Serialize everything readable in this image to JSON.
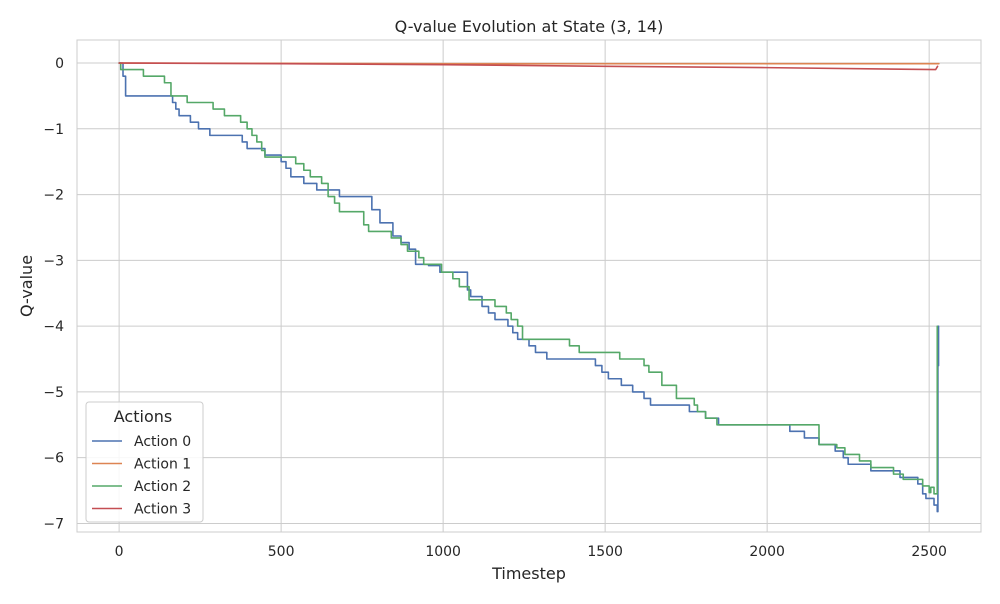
{
  "chart_data": {
    "type": "line",
    "title": "Q-value Evolution at State (3, 14)",
    "xlabel": "Timestep",
    "ylabel": "Q-value",
    "xlim": [
      -130,
      2660
    ],
    "ylim": [
      -7.13,
      0.35
    ],
    "xticks": [
      0,
      500,
      1000,
      1500,
      2000,
      2500
    ],
    "xtick_labels": [
      "0",
      "500",
      "1000",
      "1500",
      "2000",
      "2500"
    ],
    "yticks": [
      0,
      -1,
      -2,
      -3,
      -4,
      -5,
      -6,
      -7
    ],
    "ytick_labels": [
      "0",
      "−1",
      "−2",
      "−3",
      "−4",
      "−5",
      "−6",
      "−7"
    ],
    "grid": true,
    "legend": {
      "title": "Actions",
      "placement": "lower-left"
    },
    "series": [
      {
        "name": "Action 0",
        "color": "#4c72b0",
        "step": true,
        "points": [
          [
            0,
            0
          ],
          [
            12,
            -0.2
          ],
          [
            20,
            -0.5
          ],
          [
            150,
            -0.5
          ],
          [
            165,
            -0.6
          ],
          [
            175,
            -0.7
          ],
          [
            185,
            -0.8
          ],
          [
            220,
            -0.9
          ],
          [
            245,
            -1.0
          ],
          [
            280,
            -1.1
          ],
          [
            380,
            -1.2
          ],
          [
            395,
            -1.3
          ],
          [
            450,
            -1.4
          ],
          [
            500,
            -1.5
          ],
          [
            515,
            -1.6
          ],
          [
            530,
            -1.73
          ],
          [
            570,
            -1.83
          ],
          [
            610,
            -1.93
          ],
          [
            680,
            -2.03
          ],
          [
            780,
            -2.23
          ],
          [
            805,
            -2.43
          ],
          [
            845,
            -2.63
          ],
          [
            870,
            -2.73
          ],
          [
            895,
            -2.83
          ],
          [
            915,
            -3.06
          ],
          [
            955,
            -3.08
          ],
          [
            990,
            -3.18
          ],
          [
            1075,
            -3.45
          ],
          [
            1085,
            -3.55
          ],
          [
            1120,
            -3.7
          ],
          [
            1140,
            -3.8
          ],
          [
            1160,
            -3.9
          ],
          [
            1200,
            -4.0
          ],
          [
            1215,
            -4.1
          ],
          [
            1230,
            -4.2
          ],
          [
            1265,
            -4.3
          ],
          [
            1285,
            -4.4
          ],
          [
            1320,
            -4.5
          ],
          [
            1470,
            -4.6
          ],
          [
            1490,
            -4.7
          ],
          [
            1510,
            -4.8
          ],
          [
            1550,
            -4.9
          ],
          [
            1585,
            -5.0
          ],
          [
            1620,
            -5.1
          ],
          [
            1640,
            -5.2
          ],
          [
            1760,
            -5.3
          ],
          [
            1810,
            -5.4
          ],
          [
            1850,
            -5.5
          ],
          [
            2070,
            -5.6
          ],
          [
            2115,
            -5.7
          ],
          [
            2160,
            -5.8
          ],
          [
            2210,
            -5.9
          ],
          [
            2235,
            -6.0
          ],
          [
            2250,
            -6.1
          ],
          [
            2320,
            -6.2
          ],
          [
            2410,
            -6.3
          ],
          [
            2465,
            -6.4
          ],
          [
            2480,
            -6.55
          ],
          [
            2490,
            -6.62
          ],
          [
            2515,
            -6.72
          ],
          [
            2525,
            -6.82
          ],
          [
            2527,
            -4.6
          ],
          [
            2529,
            -4.0
          ]
        ]
      },
      {
        "name": "Action 1",
        "color": "#dd8452",
        "step": false,
        "points": [
          [
            0,
            0
          ],
          [
            500,
            -0.005
          ],
          [
            1000,
            -0.01
          ],
          [
            1500,
            -0.01
          ],
          [
            2000,
            -0.01
          ],
          [
            2530,
            -0.01
          ]
        ]
      },
      {
        "name": "Action 2",
        "color": "#55a868",
        "step": true,
        "points": [
          [
            0,
            0
          ],
          [
            5,
            -0.1
          ],
          [
            75,
            -0.2
          ],
          [
            140,
            -0.3
          ],
          [
            160,
            -0.5
          ],
          [
            210,
            -0.6
          ],
          [
            290,
            -0.7
          ],
          [
            325,
            -0.8
          ],
          [
            375,
            -0.9
          ],
          [
            395,
            -1.0
          ],
          [
            410,
            -1.1
          ],
          [
            425,
            -1.2
          ],
          [
            440,
            -1.33
          ],
          [
            450,
            -1.43
          ],
          [
            545,
            -1.53
          ],
          [
            570,
            -1.63
          ],
          [
            590,
            -1.73
          ],
          [
            625,
            -1.83
          ],
          [
            645,
            -2.03
          ],
          [
            665,
            -2.13
          ],
          [
            680,
            -2.26
          ],
          [
            755,
            -2.46
          ],
          [
            770,
            -2.56
          ],
          [
            840,
            -2.66
          ],
          [
            870,
            -2.76
          ],
          [
            890,
            -2.86
          ],
          [
            925,
            -2.96
          ],
          [
            940,
            -3.06
          ],
          [
            995,
            -3.18
          ],
          [
            1030,
            -3.28
          ],
          [
            1050,
            -3.4
          ],
          [
            1080,
            -3.6
          ],
          [
            1160,
            -3.7
          ],
          [
            1195,
            -3.8
          ],
          [
            1210,
            -3.9
          ],
          [
            1230,
            -4.0
          ],
          [
            1245,
            -4.2
          ],
          [
            1390,
            -4.3
          ],
          [
            1420,
            -4.4
          ],
          [
            1545,
            -4.5
          ],
          [
            1620,
            -4.6
          ],
          [
            1635,
            -4.7
          ],
          [
            1675,
            -4.9
          ],
          [
            1720,
            -5.1
          ],
          [
            1775,
            -5.2
          ],
          [
            1785,
            -5.3
          ],
          [
            1810,
            -5.4
          ],
          [
            1845,
            -5.5
          ],
          [
            2160,
            -5.8
          ],
          [
            2215,
            -5.85
          ],
          [
            2240,
            -5.95
          ],
          [
            2285,
            -6.05
          ],
          [
            2320,
            -6.15
          ],
          [
            2390,
            -6.25
          ],
          [
            2420,
            -6.33
          ],
          [
            2480,
            -6.43
          ],
          [
            2500,
            -6.53
          ],
          [
            2505,
            -6.45
          ],
          [
            2515,
            -6.55
          ],
          [
            2525,
            -4.0
          ]
        ]
      },
      {
        "name": "Action 3",
        "color": "#c44e52",
        "step": false,
        "points": [
          [
            0,
            0
          ],
          [
            500,
            -0.01
          ],
          [
            1000,
            -0.025
          ],
          [
            1500,
            -0.05
          ],
          [
            2000,
            -0.07
          ],
          [
            2520,
            -0.1
          ],
          [
            2526,
            -0.05
          ]
        ]
      }
    ]
  }
}
